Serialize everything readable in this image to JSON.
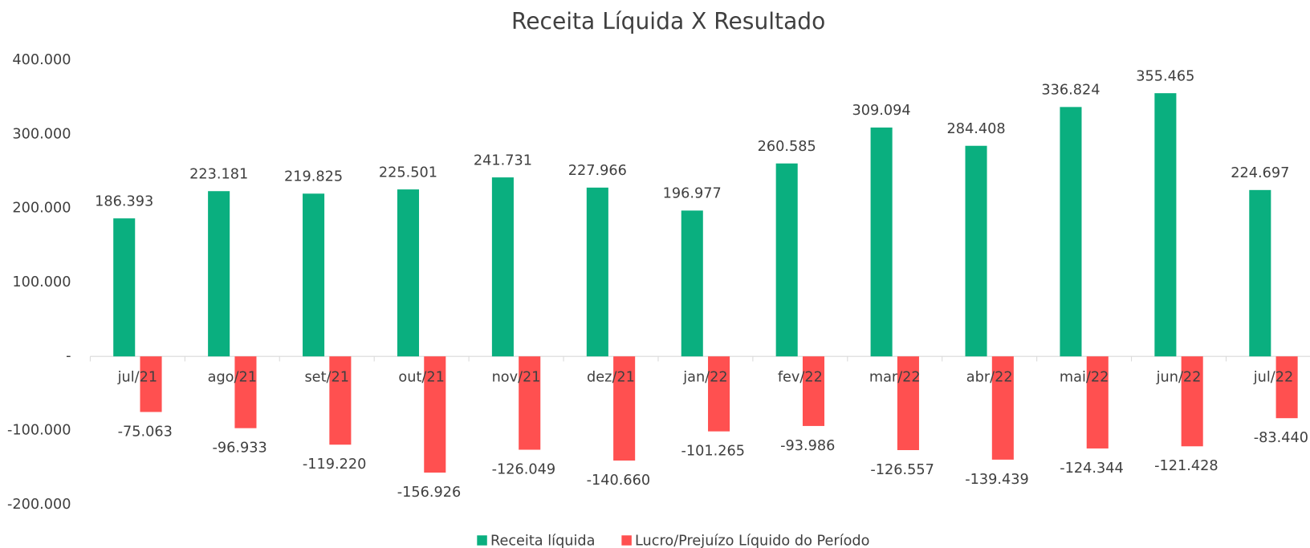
{
  "chart_data": {
    "type": "bar",
    "title": "Receita Líquida X Resultado",
    "categories": [
      "jul/21",
      "ago/21",
      "set/21",
      "out/21",
      "nov/21",
      "dez/21",
      "jan/22",
      "fev/22",
      "mar/22",
      "abr/22",
      "mai/22",
      "jun/22",
      "jul/22"
    ],
    "series": [
      {
        "name": "Receita líquida",
        "color": "#0aaf7f",
        "values": [
          186393,
          223181,
          219825,
          225501,
          241731,
          227966,
          196977,
          260585,
          309094,
          284408,
          336824,
          355465,
          224697
        ],
        "value_labels": [
          "186.393",
          "223.181",
          "219.825",
          "225.501",
          "241.731",
          "227.966",
          "196.977",
          "260.585",
          "309.094",
          "284.408",
          "336.824",
          "355.465",
          "224.697"
        ]
      },
      {
        "name": "Lucro/Prejuízo Líquido do Período",
        "color": "#ff5050",
        "values": [
          -75063,
          -96933,
          -119220,
          -156926,
          -126049,
          -140660,
          -101265,
          -93986,
          -126557,
          -139439,
          -124344,
          -121428,
          -83440
        ],
        "value_labels": [
          "-75.063",
          "-96.933",
          "-119.220",
          "-156.926",
          "-126.049",
          "-140.660",
          "-101.265",
          "-93.986",
          "-126.557",
          "-139.439",
          "-124.344",
          "-121.428",
          "-83.440"
        ]
      }
    ],
    "ylim": [
      -200000,
      400000
    ],
    "yticks": [
      {
        "value": -200000,
        "label": "-200.000"
      },
      {
        "value": -100000,
        "label": "-100.000"
      },
      {
        "value": 0,
        "label": "-"
      },
      {
        "value": 100000,
        "label": "100.000"
      },
      {
        "value": 200000,
        "label": "200.000"
      },
      {
        "value": 300000,
        "label": "300.000"
      },
      {
        "value": 400000,
        "label": "400.000"
      }
    ],
    "grid": false,
    "legend": "bottom"
  }
}
